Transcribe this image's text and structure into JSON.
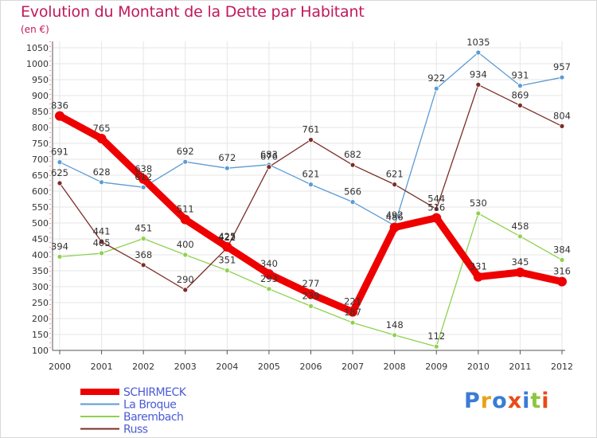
{
  "title": "Evolution du Montant de la Dette par Habitant",
  "subtitle": "(en €)",
  "brand": {
    "text": "Proxiti",
    "letter_colors": [
      "#3a7bd5",
      "#e8a21a",
      "#3a7bd5",
      "#e84b1a",
      "#3a7bd5",
      "#8cc63f",
      "#e84b1a"
    ]
  },
  "chart_data": {
    "type": "line",
    "title": "Evolution du Montant de la Dette par Habitant",
    "ylabel": "(en €)",
    "xlabel": "",
    "ylim": [
      100,
      1050
    ],
    "grid": true,
    "legend_position": "bottom-left",
    "x": [
      "2000",
      "2001",
      "2002",
      "2003",
      "2004",
      "2005",
      "2006",
      "2007",
      "2008",
      "2009",
      "2010",
      "2011",
      "2012"
    ],
    "yticks": [
      100,
      150,
      200,
      250,
      300,
      350,
      400,
      450,
      500,
      550,
      600,
      650,
      700,
      750,
      800,
      850,
      900,
      950,
      1000,
      1050
    ],
    "series": [
      {
        "name": "SCHIRMECK",
        "color": "#ee0000",
        "emphasis": true,
        "values": [
          836,
          765,
          638,
          511,
          425,
          340,
          277,
          221,
          486,
          516,
          331,
          345,
          316
        ],
        "labels": [
          "836",
          "765",
          "638",
          "511",
          "425",
          "340",
          "277",
          "221",
          "486",
          "516",
          "331",
          "345",
          "316"
        ]
      },
      {
        "name": "La Broque",
        "color": "#5b9bd5",
        "values": [
          691,
          628,
          612,
          692,
          672,
          683,
          621,
          566,
          492,
          922,
          1035,
          931,
          957
        ],
        "labels": [
          "691",
          "628",
          "612",
          "692",
          "672",
          "683",
          "621",
          "566",
          "492",
          "922",
          "1035",
          "931",
          "957"
        ]
      },
      {
        "name": "Barembach",
        "color": "#8fd14f",
        "values": [
          394,
          405,
          451,
          400,
          351,
          293,
          239,
          187,
          148,
          112,
          530,
          458,
          384
        ],
        "labels": [
          "394",
          "405",
          "451",
          "400",
          "351",
          "293",
          "239",
          "187",
          "148",
          "112",
          "530",
          "458",
          "384"
        ]
      },
      {
        "name": "Russ",
        "color": "#7b2d26",
        "values": [
          625,
          441,
          368,
          290,
          422,
          676,
          761,
          682,
          621,
          544,
          934,
          869,
          804
        ],
        "labels": [
          "625",
          "441",
          "368",
          "290",
          "422",
          "676",
          "761",
          "682",
          "621",
          "544",
          "934",
          "869",
          "804"
        ]
      }
    ]
  }
}
